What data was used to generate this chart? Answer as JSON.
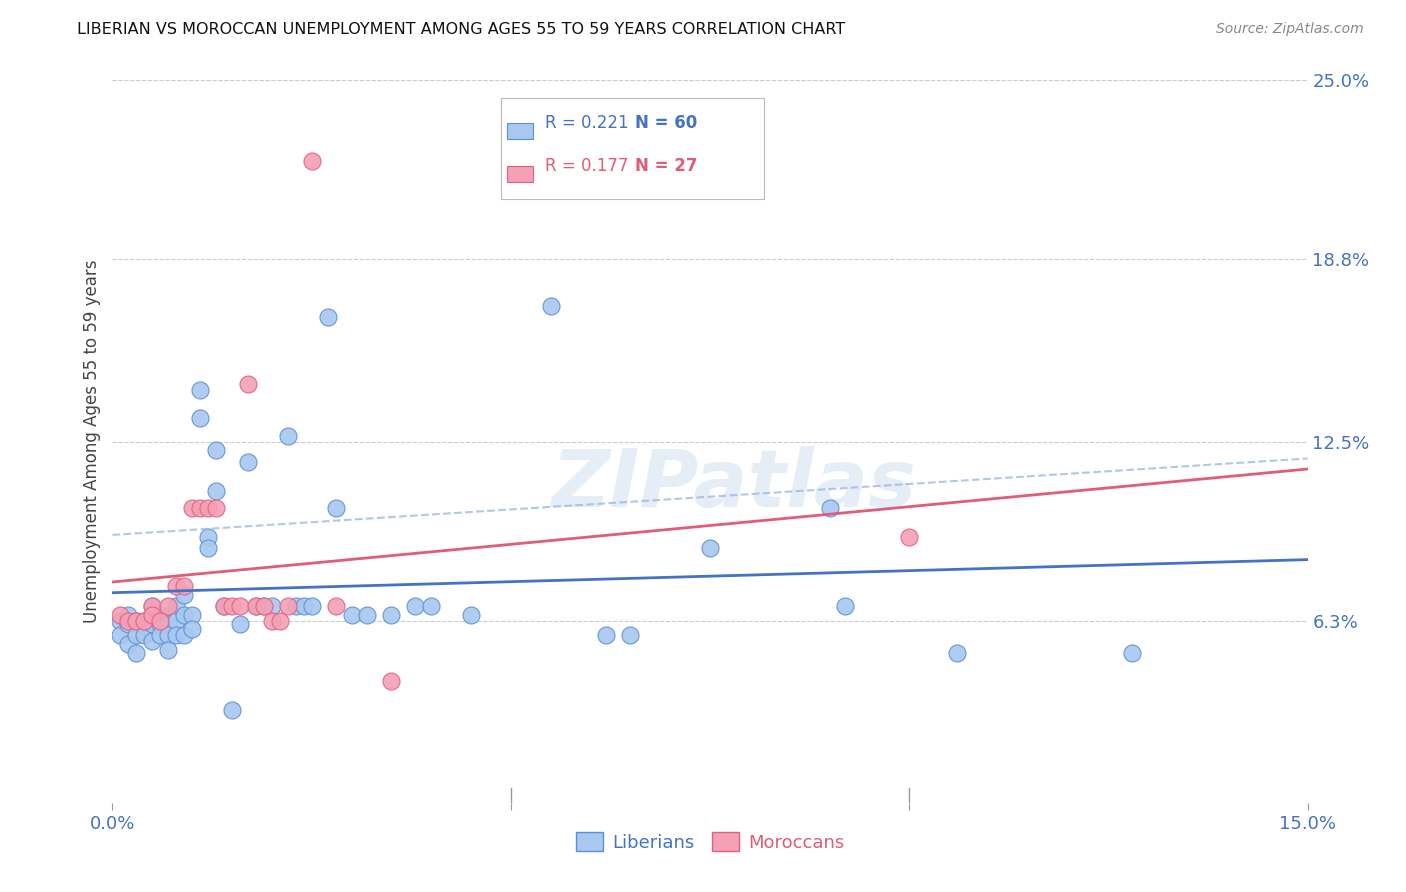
{
  "title": "LIBERIAN VS MOROCCAN UNEMPLOYMENT AMONG AGES 55 TO 59 YEARS CORRELATION CHART",
  "source": "Source: ZipAtlas.com",
  "ylabel": "Unemployment Among Ages 55 to 59 years",
  "xlim": [
    0.0,
    0.15
  ],
  "ylim": [
    0.0,
    0.25
  ],
  "ytick_right_labels": [
    "25.0%",
    "18.8%",
    "12.5%",
    "6.3%"
  ],
  "ytick_right_values": [
    0.25,
    0.188,
    0.125,
    0.063
  ],
  "liberian_R": "0.221",
  "liberian_N": "60",
  "moroccan_R": "0.177",
  "moroccan_N": "27",
  "liberian_color": "#A8C8F0",
  "moroccan_color": "#F4A0B5",
  "liberian_edge_color": "#5B8FD4",
  "moroccan_edge_color": "#E06080",
  "liberian_line_color": "#4472C4",
  "moroccan_line_color": "#E05C78",
  "watermark_text": "ZIPatlas",
  "liberian_x": [
    0.001,
    0.001,
    0.002,
    0.002,
    0.002,
    0.003,
    0.003,
    0.003,
    0.004,
    0.004,
    0.005,
    0.005,
    0.005,
    0.006,
    0.006,
    0.006,
    0.007,
    0.007,
    0.007,
    0.008,
    0.008,
    0.008,
    0.009,
    0.009,
    0.009,
    0.01,
    0.01,
    0.011,
    0.011,
    0.012,
    0.012,
    0.013,
    0.013,
    0.014,
    0.015,
    0.016,
    0.017,
    0.018,
    0.019,
    0.02,
    0.022,
    0.023,
    0.024,
    0.025,
    0.027,
    0.028,
    0.03,
    0.032,
    0.035,
    0.038,
    0.04,
    0.045,
    0.055,
    0.062,
    0.065,
    0.075,
    0.09,
    0.092,
    0.106,
    0.128
  ],
  "liberian_y": [
    0.063,
    0.058,
    0.065,
    0.062,
    0.055,
    0.063,
    0.058,
    0.052,
    0.063,
    0.058,
    0.068,
    0.062,
    0.056,
    0.065,
    0.062,
    0.058,
    0.062,
    0.058,
    0.053,
    0.068,
    0.063,
    0.058,
    0.072,
    0.065,
    0.058,
    0.065,
    0.06,
    0.143,
    0.133,
    0.092,
    0.088,
    0.108,
    0.122,
    0.068,
    0.032,
    0.062,
    0.118,
    0.068,
    0.068,
    0.068,
    0.127,
    0.068,
    0.068,
    0.068,
    0.168,
    0.102,
    0.065,
    0.065,
    0.065,
    0.068,
    0.068,
    0.065,
    0.172,
    0.058,
    0.058,
    0.088,
    0.102,
    0.068,
    0.052,
    0.052
  ],
  "moroccan_x": [
    0.001,
    0.002,
    0.003,
    0.004,
    0.005,
    0.005,
    0.006,
    0.007,
    0.008,
    0.009,
    0.01,
    0.011,
    0.012,
    0.013,
    0.014,
    0.015,
    0.016,
    0.017,
    0.018,
    0.019,
    0.02,
    0.021,
    0.022,
    0.025,
    0.028,
    0.035,
    0.1
  ],
  "moroccan_y": [
    0.065,
    0.063,
    0.063,
    0.063,
    0.068,
    0.065,
    0.063,
    0.068,
    0.075,
    0.075,
    0.102,
    0.102,
    0.102,
    0.102,
    0.068,
    0.068,
    0.068,
    0.145,
    0.068,
    0.068,
    0.063,
    0.063,
    0.068,
    0.222,
    0.068,
    0.042,
    0.092
  ]
}
